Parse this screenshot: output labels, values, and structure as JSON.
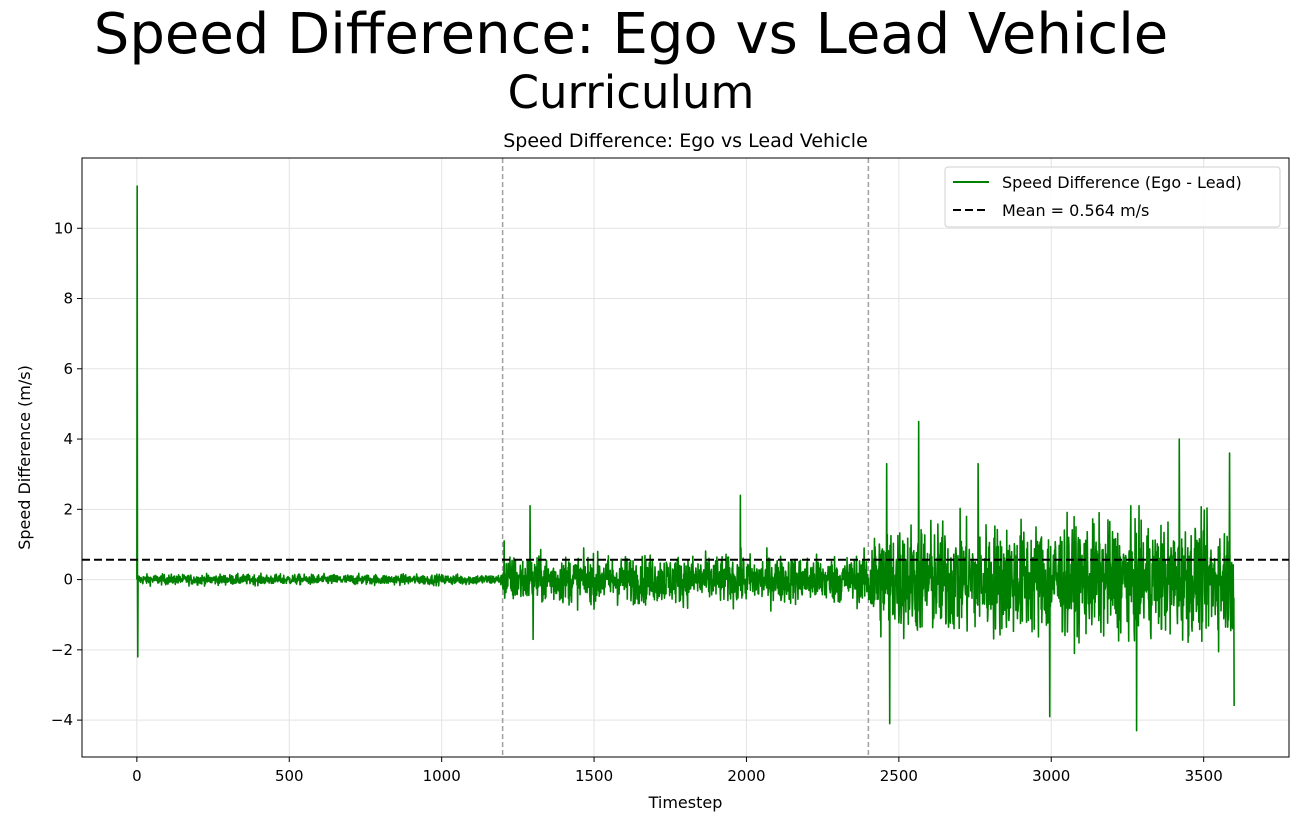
{
  "figure": {
    "suptitle": "Speed Difference: Ego vs Lead Vehicle",
    "subtitle": "Curriculum"
  },
  "chart_data": {
    "type": "line",
    "title": "Speed Difference: Ego vs Lead Vehicle",
    "xlabel": "Timestep",
    "ylabel": "Speed Difference (m/s)",
    "xlim": [
      -180,
      3780
    ],
    "ylim": [
      -5.05,
      12.0
    ],
    "x_ticks": [
      0,
      500,
      1000,
      1500,
      2000,
      2500,
      3000,
      3500
    ],
    "x_tick_labels": [
      "0",
      "500",
      "1000",
      "1500",
      "2000",
      "2500",
      "3000",
      "3500"
    ],
    "y_ticks": [
      -4,
      -2,
      0,
      2,
      4,
      6,
      8,
      10
    ],
    "y_tick_labels": [
      "−4",
      "−2",
      "0",
      "2",
      "4",
      "6",
      "8",
      "10"
    ],
    "grid": true,
    "legend_position": "top-right",
    "colors": {
      "series": "#008000",
      "mean": "#000000",
      "vlines": "#a0a0a0"
    },
    "series": [
      {
        "name": "Speed Difference (Ego - Lead)",
        "x_range": [
          0,
          3600
        ],
        "noisy_segments": [
          {
            "x_start": 0,
            "x_end": 1200,
            "amplitude": 0.13
          },
          {
            "x_start": 1200,
            "x_end": 2400,
            "amplitude": 0.6
          },
          {
            "x_start": 2400,
            "x_end": 3600,
            "amplitude": 1.4
          }
        ],
        "points": [
          [
            0,
            0.0
          ],
          [
            1,
            11.2
          ],
          [
            3,
            -2.2
          ],
          [
            6,
            0.1
          ],
          [
            1205,
            1.1
          ],
          [
            1290,
            2.1
          ],
          [
            1300,
            -1.7
          ],
          [
            1980,
            2.4
          ],
          [
            2460,
            3.3
          ],
          [
            2470,
            -4.1
          ],
          [
            2565,
            4.5
          ],
          [
            2760,
            3.3
          ],
          [
            2995,
            -3.9
          ],
          [
            3280,
            -4.3
          ],
          [
            3420,
            4.0
          ],
          [
            3585,
            3.6
          ],
          [
            3600,
            -3.6
          ]
        ]
      },
      {
        "name": "Mean = 0.564 m/s",
        "style": "dashed",
        "y": 0.564
      }
    ],
    "vertical_lines": [
      1200,
      2400
    ]
  }
}
